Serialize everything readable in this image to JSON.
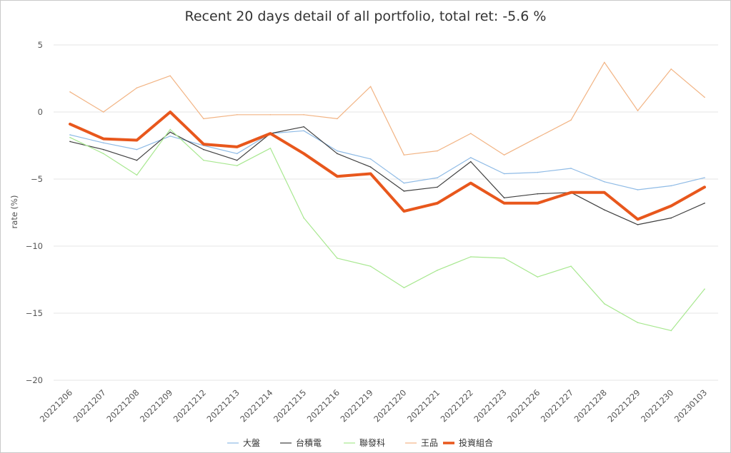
{
  "chart_data": {
    "type": "line",
    "title": "Recent 20 days detail of all portfolio, total ret: -5.6 %",
    "ylabel": "rate (%)",
    "ylim": [
      -20,
      5
    ],
    "yticks": [
      5,
      0,
      -5,
      -10,
      -15,
      -20
    ],
    "ytick_labels": [
      "5",
      "0",
      "−5",
      "−10",
      "−15",
      "−20"
    ],
    "grid": true,
    "legend_position": "bottom",
    "categories": [
      "20221206",
      "20221207",
      "20221208",
      "20221209",
      "20221212",
      "20221213",
      "20221214",
      "20221215",
      "20221216",
      "20221219",
      "20221220",
      "20221221",
      "20221222",
      "20221223",
      "20221226",
      "20221227",
      "20221228",
      "20221229",
      "20221230",
      "20230103"
    ],
    "series": [
      {
        "name": "大盤",
        "color": "#8fbbe6",
        "width": 1.2,
        "values": [
          -1.7,
          -2.3,
          -2.8,
          -1.8,
          -2.5,
          -3.1,
          -1.6,
          -1.4,
          -2.9,
          -3.5,
          -5.3,
          -4.9,
          -3.4,
          -4.6,
          -4.5,
          -4.2,
          -5.2,
          -5.8,
          -5.5,
          -4.9
        ]
      },
      {
        "name": "台積電",
        "color": "#404040",
        "width": 1.2,
        "values": [
          -2.2,
          -2.8,
          -3.6,
          -1.5,
          -2.8,
          -3.6,
          -1.6,
          -1.1,
          -3.1,
          -4.1,
          -5.9,
          -5.6,
          -3.7,
          -6.4,
          -6.1,
          -6.0,
          -7.3,
          -8.4,
          -7.9,
          -6.8
        ]
      },
      {
        "name": "聯發科",
        "color": "#a8e890",
        "width": 1.2,
        "values": [
          -1.9,
          -3.1,
          -4.7,
          -1.3,
          -3.6,
          -4.0,
          -2.7,
          -7.9,
          -10.9,
          -11.5,
          -13.1,
          -11.8,
          -10.8,
          -10.9,
          -12.3,
          -11.5,
          -14.3,
          -15.7,
          -16.3,
          -13.2
        ]
      },
      {
        "name": "王品",
        "color": "#f2b484",
        "width": 1.2,
        "values": [
          1.5,
          0.0,
          1.8,
          2.7,
          -0.5,
          -0.2,
          -0.2,
          -0.2,
          -0.5,
          1.9,
          -3.2,
          -2.9,
          -1.6,
          -3.2,
          -1.9,
          -0.6,
          3.7,
          0.1,
          3.2,
          1.1
        ]
      },
      {
        "name": "投資組合",
        "color": "#e8571c",
        "width": 4,
        "values": [
          -0.9,
          -2.0,
          -2.1,
          0.0,
          -2.4,
          -2.6,
          -1.6,
          -3.1,
          -4.8,
          -4.6,
          -7.4,
          -6.8,
          -5.3,
          -6.8,
          -6.8,
          -6.0,
          -6.0,
          -8.0,
          -7.0,
          -5.6
        ]
      }
    ]
  }
}
